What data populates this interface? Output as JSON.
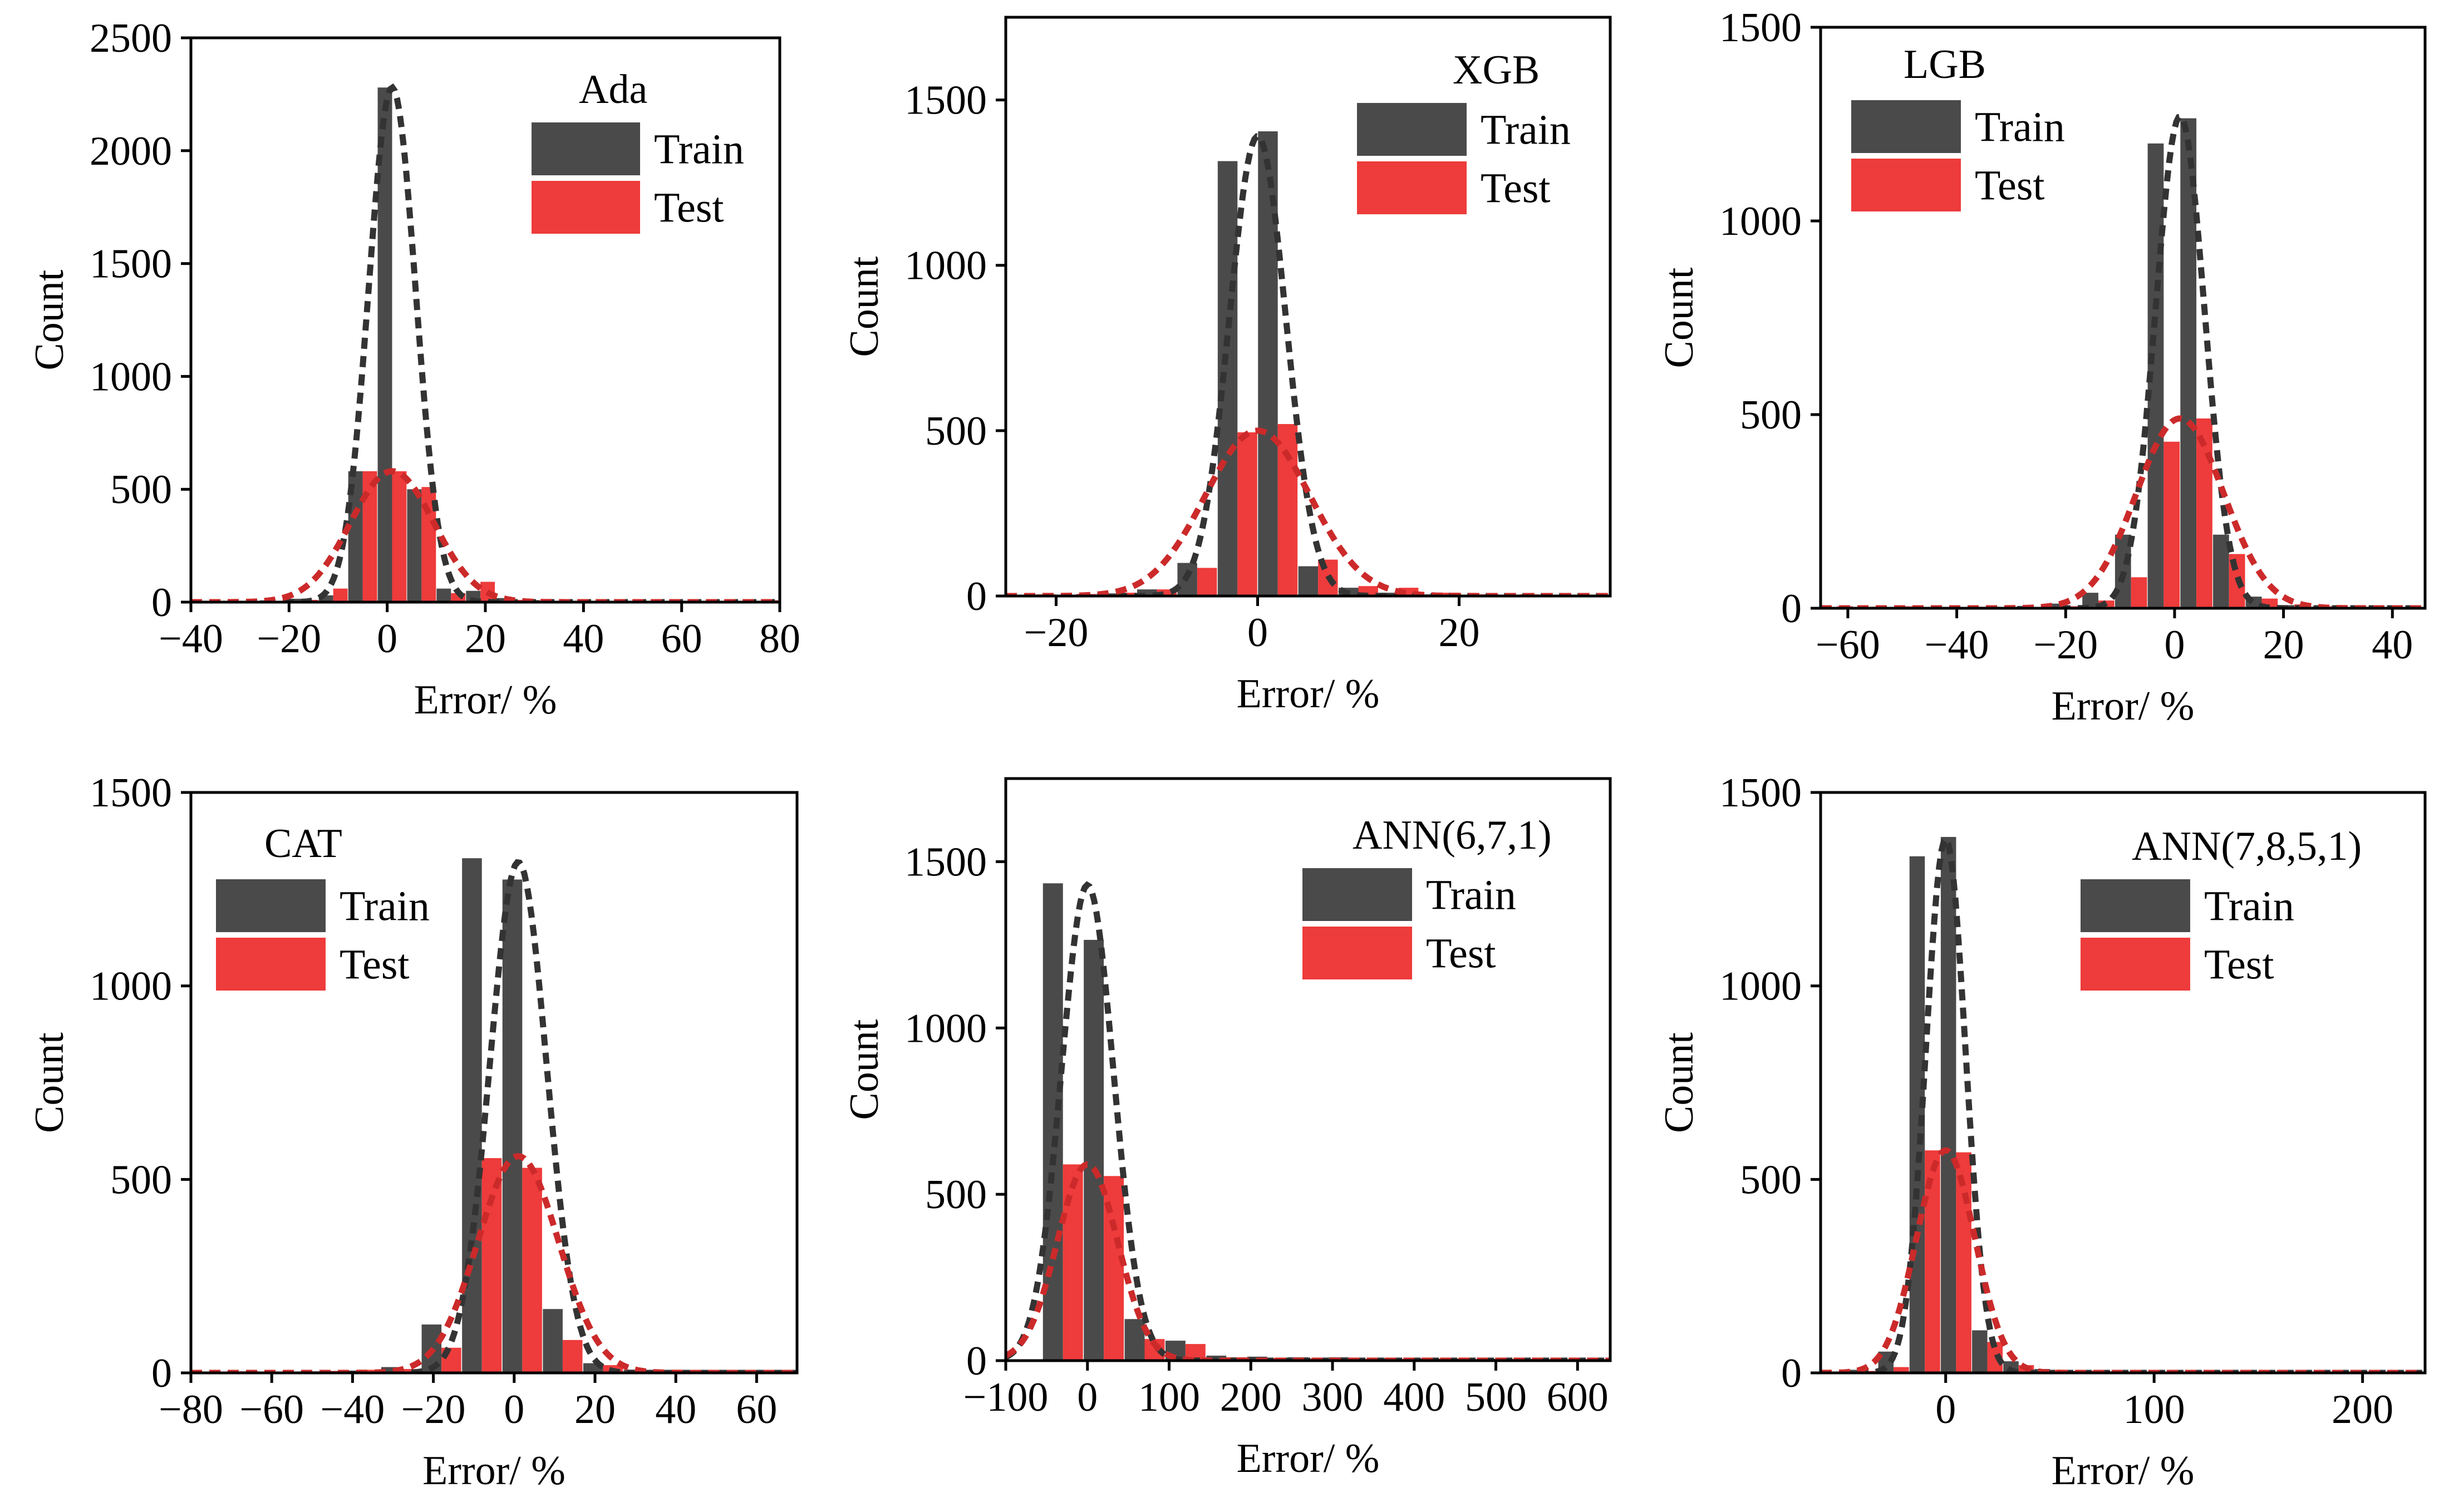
{
  "colors": {
    "train": "#4a4a4a",
    "test": "#ee3b3b",
    "train_fit": "#333333",
    "test_fit": "#cc2a2a"
  },
  "chart_data": [
    {
      "type": "bar",
      "title": "Ada",
      "xlabel": "Error/ %",
      "ylabel": "Count",
      "xlim": [
        -40,
        80
      ],
      "ylim": [
        0,
        2500
      ],
      "xticks": [
        -40,
        -20,
        0,
        20,
        40,
        60,
        80
      ],
      "xtick_labels": [
        "−40",
        "−20",
        "0",
        "20",
        "40",
        "60",
        "80"
      ],
      "yticks": [
        0,
        500,
        1000,
        1500,
        2000,
        2500
      ],
      "ytick_labels": [
        "0",
        "500",
        "1000",
        "1500",
        "2000",
        "2500"
      ],
      "legend": [
        "Train",
        "Test"
      ],
      "legend_position": "top-right",
      "series": [
        {
          "name": "Train",
          "x": [
            -35,
            -29,
            -23,
            -17,
            -11,
            -5,
            1,
            7,
            13,
            19,
            25,
            31,
            37,
            43,
            49,
            55,
            61,
            67,
            73,
            79
          ],
          "values": [
            3,
            4,
            8,
            15,
            30,
            580,
            2280,
            500,
            60,
            50,
            18,
            9,
            6,
            4,
            3,
            3,
            3,
            2,
            2,
            2
          ]
        },
        {
          "name": "Test",
          "x": [
            -35,
            -29,
            -23,
            -17,
            -11,
            -5,
            1,
            7,
            13,
            19,
            25,
            31,
            37,
            43,
            49,
            55,
            61,
            67,
            73,
            79
          ],
          "values": [
            2,
            3,
            5,
            10,
            60,
            580,
            580,
            510,
            40,
            90,
            10,
            8,
            5,
            4,
            6,
            2,
            2,
            2,
            2,
            8
          ]
        }
      ],
      "fits": [
        {
          "name": "Train",
          "mu": 1,
          "sigma": 4.8,
          "peak": 2280
        },
        {
          "name": "Test",
          "mu": 1,
          "sigma": 8.5,
          "peak": 580
        }
      ]
    },
    {
      "type": "bar",
      "title": "XGB",
      "xlabel": "Error/ %",
      "ylabel": "Count",
      "xlim": [
        -25,
        35
      ],
      "ylim": [
        0,
        1750
      ],
      "xticks": [
        -20,
        0,
        20
      ],
      "xtick_labels": [
        "−20",
        "0",
        "20"
      ],
      "yticks": [
        0,
        500,
        1000,
        1500
      ],
      "ytick_labels": [
        "0",
        "500",
        "1000",
        "1500"
      ],
      "legend": [
        "Train",
        "Test"
      ],
      "legend_position": "top-right",
      "series": [
        {
          "name": "Train",
          "x": [
            -22,
            -18,
            -14,
            -10,
            -6,
            -2,
            2,
            6,
            10,
            14,
            18,
            22,
            26,
            30,
            34
          ],
          "values": [
            2,
            3,
            8,
            20,
            100,
            1315,
            1405,
            90,
            25,
            10,
            5,
            4,
            3,
            2,
            2
          ]
        },
        {
          "name": "Test",
          "x": [
            -22,
            -18,
            -14,
            -10,
            -6,
            -2,
            2,
            6,
            10,
            14,
            18,
            22,
            26,
            30,
            34
          ],
          "values": [
            5,
            6,
            10,
            20,
            85,
            495,
            520,
            110,
            30,
            25,
            10,
            5,
            5,
            2,
            3
          ]
        }
      ],
      "fits": [
        {
          "name": "Train",
          "mu": 0,
          "sigma": 2.8,
          "peak": 1390
        },
        {
          "name": "Test",
          "mu": 0,
          "sigma": 5.2,
          "peak": 500
        }
      ]
    },
    {
      "type": "bar",
      "title": "LGB",
      "xlabel": "Error/ %",
      "ylabel": "Count",
      "xlim": [
        -65,
        46
      ],
      "ylim": [
        0,
        1500
      ],
      "xticks": [
        -60,
        -40,
        -20,
        0,
        20,
        40
      ],
      "xtick_labels": [
        "−60",
        "−40",
        "−20",
        "0",
        "20",
        "40"
      ],
      "yticks": [
        0,
        500,
        1000,
        1500
      ],
      "ytick_labels": [
        "0",
        "500",
        "1000",
        "1500"
      ],
      "legend": [
        "Train",
        "Test"
      ],
      "legend_position": "top-left",
      "series": [
        {
          "name": "Train",
          "x": [
            -62,
            -56,
            -50,
            -44,
            -38,
            -32,
            -26,
            -20,
            -14,
            -8,
            -2,
            4,
            10,
            16,
            22,
            28,
            34,
            40,
            46
          ],
          "values": [
            2,
            2,
            2,
            3,
            3,
            4,
            6,
            12,
            40,
            190,
            1200,
            1265,
            190,
            30,
            8,
            4,
            3,
            2,
            2
          ]
        },
        {
          "name": "Test",
          "x": [
            -62,
            -56,
            -50,
            -44,
            -38,
            -32,
            -26,
            -20,
            -14,
            -8,
            -2,
            4,
            10,
            16,
            22,
            28,
            34,
            40,
            46
          ],
          "values": [
            5,
            4,
            5,
            3,
            4,
            2,
            3,
            5,
            20,
            80,
            430,
            490,
            140,
            25,
            10,
            5,
            4,
            3,
            2
          ]
        }
      ],
      "fits": [
        {
          "name": "Train",
          "mu": 1,
          "sigma": 4.5,
          "peak": 1270
        },
        {
          "name": "Test",
          "mu": 1,
          "sigma": 8.0,
          "peak": 490
        }
      ]
    },
    {
      "type": "bar",
      "title": "CAT",
      "xlabel": "Error/ %",
      "ylabel": "Count",
      "xlim": [
        -80,
        70
      ],
      "ylim": [
        0,
        1500
      ],
      "xticks": [
        -80,
        -60,
        -40,
        -20,
        0,
        20,
        40,
        60
      ],
      "xtick_labels": [
        "−80",
        "−60",
        "−40",
        "−20",
        "0",
        "20",
        "40",
        "60"
      ],
      "yticks": [
        0,
        500,
        1000,
        1500
      ],
      "ytick_labels": [
        "0",
        "500",
        "1000",
        "1500"
      ],
      "legend": [
        "Train",
        "Test"
      ],
      "legend_position": "top-left",
      "series": [
        {
          "name": "Train",
          "x": [
            -68,
            -58,
            -48,
            -38,
            -28,
            -18,
            -8,
            2,
            12,
            22,
            32,
            42,
            52,
            62
          ],
          "values": [
            3,
            3,
            4,
            6,
            15,
            125,
            1330,
            1275,
            165,
            25,
            8,
            5,
            3,
            3
          ]
        },
        {
          "name": "Test",
          "x": [
            -68,
            -58,
            -48,
            -38,
            -28,
            -18,
            -8,
            2,
            12,
            22,
            32,
            42,
            52,
            62
          ],
          "values": [
            4,
            3,
            5,
            8,
            10,
            65,
            555,
            530,
            85,
            20,
            8,
            5,
            4,
            3
          ]
        }
      ],
      "fits": [
        {
          "name": "Train",
          "mu": 1,
          "sigma": 7.0,
          "peak": 1320
        },
        {
          "name": "Test",
          "mu": 1,
          "sigma": 10.0,
          "peak": 560
        }
      ]
    },
    {
      "type": "bar",
      "title": "ANN(6,7,1)",
      "xlabel": "Error/ %",
      "ylabel": "Count",
      "xlim": [
        -100,
        640
      ],
      "ylim": [
        0,
        1750
      ],
      "xticks": [
        -100,
        0,
        100,
        200,
        300,
        400,
        500,
        600
      ],
      "xtick_labels": [
        "−100",
        "0",
        "100",
        "200",
        "300",
        "400",
        "500",
        "600"
      ],
      "yticks": [
        0,
        500,
        1000,
        1500
      ],
      "ytick_labels": [
        "0",
        "500",
        "1000",
        "1500"
      ],
      "legend": [
        "Train",
        "Test"
      ],
      "legend_position": "top-right",
      "series": [
        {
          "name": "Train",
          "x": [
            -30,
            20,
            70,
            120,
            170,
            220,
            270,
            320,
            370,
            420,
            470,
            520,
            570,
            620
          ],
          "values": [
            1435,
            1265,
            125,
            60,
            15,
            12,
            10,
            10,
            8,
            7,
            6,
            5,
            4,
            3
          ]
        },
        {
          "name": "Test",
          "x": [
            -30,
            20,
            70,
            120,
            170,
            220,
            270,
            320,
            370,
            420,
            470,
            520,
            570,
            620
          ],
          "values": [
            590,
            555,
            65,
            50,
            10,
            8,
            6,
            5,
            5,
            6,
            4,
            5,
            3,
            3
          ]
        }
      ],
      "fits": [
        {
          "name": "Train",
          "mu": 0,
          "sigma": 32,
          "peak": 1430
        },
        {
          "name": "Test",
          "mu": 0,
          "sigma": 37,
          "peak": 590
        }
      ]
    },
    {
      "type": "bar",
      "title": "ANN(7,8,5,1)",
      "xlabel": "Error/ %",
      "ylabel": "Count",
      "xlim": [
        -60,
        230
      ],
      "ylim": [
        0,
        1500
      ],
      "xticks": [
        0,
        100,
        200
      ],
      "xtick_labels": [
        "0",
        "100",
        "200"
      ],
      "yticks": [
        0,
        500,
        1000,
        1500
      ],
      "ytick_labels": [
        "0",
        "500",
        "1000",
        "1500"
      ],
      "legend": [
        "Train",
        "Test"
      ],
      "legend_position": "top-right",
      "series": [
        {
          "name": "Train",
          "x": [
            -55,
            -40,
            -25,
            -10,
            5,
            20,
            35,
            50,
            65,
            80,
            95,
            110,
            125,
            140,
            155,
            170,
            185,
            200,
            215
          ],
          "values": [
            3,
            8,
            55,
            1335,
            1385,
            110,
            30,
            10,
            5,
            4,
            3,
            3,
            3,
            2,
            2,
            2,
            2,
            3,
            2
          ]
        },
        {
          "name": "Test",
          "x": [
            -55,
            -40,
            -25,
            -10,
            5,
            20,
            35,
            50,
            65,
            80,
            95,
            110,
            125,
            140,
            155,
            170,
            185,
            200,
            215
          ],
          "values": [
            2,
            5,
            15,
            575,
            570,
            80,
            20,
            8,
            6,
            4,
            3,
            3,
            4,
            2,
            2,
            2,
            2,
            2,
            2
          ]
        }
      ],
      "fits": [
        {
          "name": "Train",
          "mu": 0,
          "sigma": 9.5,
          "peak": 1380
        },
        {
          "name": "Test",
          "mu": 0,
          "sigma": 14.0,
          "peak": 575
        }
      ]
    }
  ]
}
